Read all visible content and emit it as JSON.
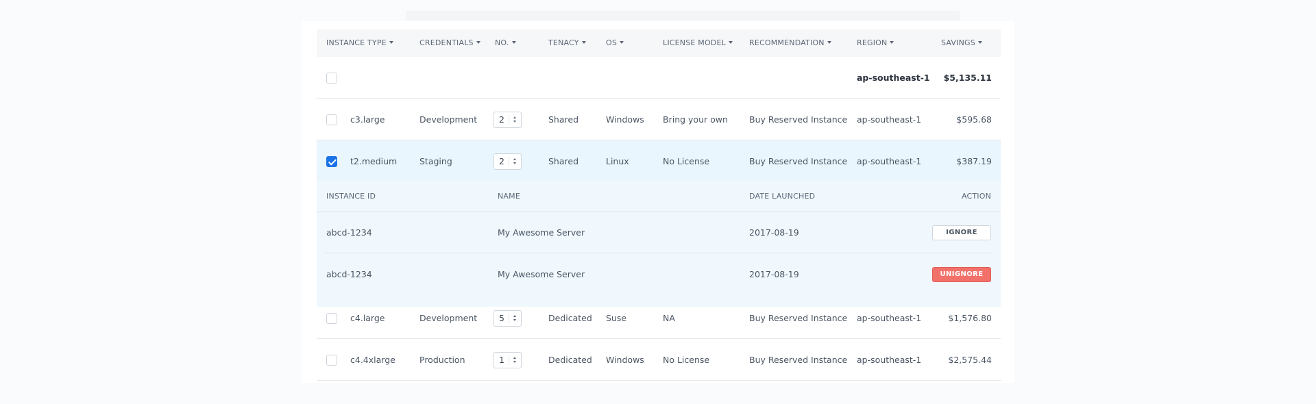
{
  "columns": [
    {
      "key": "instance_type",
      "label": "INSTANCE TYPE"
    },
    {
      "key": "credentials",
      "label": "CREDENTIALS"
    },
    {
      "key": "no",
      "label": "NO."
    },
    {
      "key": "tenacy",
      "label": "TENACY"
    },
    {
      "key": "os",
      "label": "OS"
    },
    {
      "key": "license_model",
      "label": "LICENSE MODEL"
    },
    {
      "key": "recommendation",
      "label": "RECOMMENDATION"
    },
    {
      "key": "region",
      "label": "REGION"
    },
    {
      "key": "savings",
      "label": "SAVINGS"
    }
  ],
  "summary": {
    "checked": false,
    "region": "ap-southeast-1",
    "savings": "$5,135.11"
  },
  "rows": [
    {
      "checked": false,
      "instance_type": "c3.large",
      "credentials": "Development",
      "no": "2",
      "tenacy": "Shared",
      "os": "Windows",
      "license_model": "Bring your own",
      "recommendation": "Buy Reserved Instance",
      "region": "ap-southeast-1",
      "savings": "$595.68"
    },
    {
      "checked": true,
      "instance_type": "t2.medium",
      "credentials": "Staging",
      "no": "2",
      "tenacy": "Shared",
      "os": "Linux",
      "license_model": "No License",
      "recommendation": "Buy Reserved Instance",
      "region": "ap-southeast-1",
      "savings": "$387.19"
    },
    {
      "checked": false,
      "instance_type": "c4.large",
      "credentials": "Development",
      "no": "5",
      "tenacy": "Dedicated",
      "os": "Suse",
      "license_model": "NA",
      "recommendation": "Buy Reserved Instance",
      "region": "ap-southeast-1",
      "savings": "$1,576.80"
    },
    {
      "checked": false,
      "instance_type": "c4.4xlarge",
      "credentials": "Production",
      "no": "1",
      "tenacy": "Dedicated",
      "os": "Windows",
      "license_model": "No License",
      "recommendation": "Buy Reserved Instance",
      "region": "ap-southeast-1",
      "savings": "$2,575.44"
    }
  ],
  "detail": {
    "headers": {
      "instance_id": "INSTANCE ID",
      "name": "NAME",
      "date_launched": "DATE LAUNCHED",
      "action": "ACTION"
    },
    "rows": [
      {
        "instance_id": "abcd-1234",
        "name": "My Awesome Server",
        "date_launched": "2017-08-19",
        "action": "IGNORE"
      },
      {
        "instance_id": "abcd-1234",
        "name": "My Awesome Server",
        "date_launched": "2017-08-19",
        "action": "UNIGNORE"
      }
    ]
  },
  "colors": {
    "accent": "#1a73e8",
    "selected_row": "#eaf6fd",
    "unignore_button": "#f2726b"
  }
}
